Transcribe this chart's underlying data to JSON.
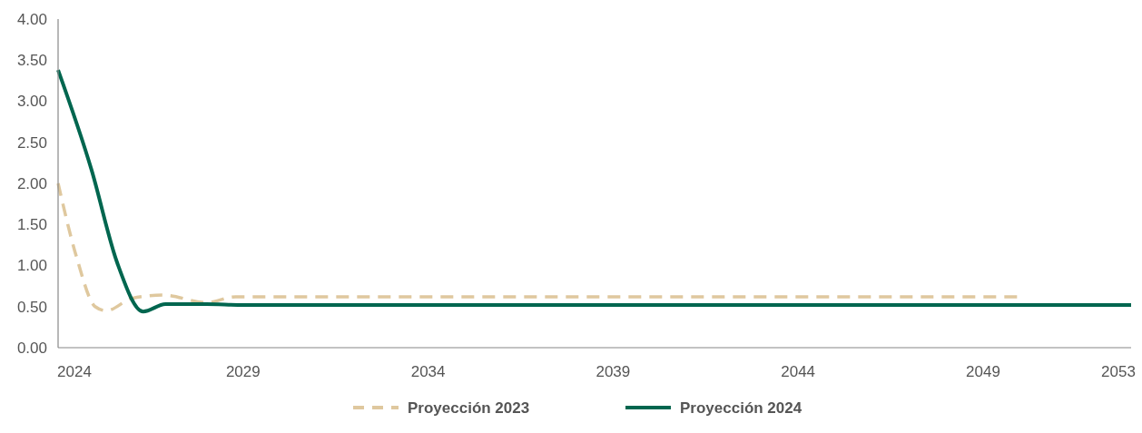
{
  "chart_data": {
    "type": "line",
    "x": [
      2024,
      2024.5,
      2025,
      2025.3,
      2026,
      2026.85,
      2028,
      2028.8,
      2030,
      2035,
      2040,
      2045,
      2050
    ],
    "xlim": [
      2024,
      2053
    ],
    "xticks": [
      2024,
      2029,
      2034,
      2039,
      2044,
      2049,
      2053
    ],
    "ylim": [
      0,
      4
    ],
    "yticks": [
      {
        "value": 0,
        "label": "0.00"
      },
      {
        "value": 0.5,
        "label": "0.50"
      },
      {
        "value": 1,
        "label": "1.00"
      },
      {
        "value": 1.5,
        "label": "1.50"
      },
      {
        "value": 2,
        "label": "2.00"
      },
      {
        "value": 2.5,
        "label": "2.50"
      },
      {
        "value": 3,
        "label": "3.00"
      },
      {
        "value": 3.5,
        "label": "3.50"
      },
      {
        "value": 4,
        "label": "4.00"
      }
    ],
    "series": [
      {
        "name": "Proyección 2023",
        "color": "#dfc89e",
        "line_style": "dashed",
        "values": [
          2.0,
          1.1,
          0.5,
          0.45,
          0.6,
          0.64,
          0.55,
          0.62,
          0.62,
          0.62,
          0.62,
          0.62,
          0.62
        ]
      },
      {
        "name": "Proyección 2024",
        "color": "#00664f",
        "line_style": "solid",
        "x": [
          2024,
          2024.9,
          2025.6,
          2026.3,
          2026.9,
          2028,
          2029,
          2035,
          2040,
          2045,
          2053
        ],
        "values": [
          3.38,
          2.17,
          1.03,
          0.44,
          0.53,
          0.53,
          0.52,
          0.52,
          0.52,
          0.52,
          0.52
        ]
      }
    ],
    "grid": false,
    "legend": "bottom",
    "marker": "none"
  }
}
